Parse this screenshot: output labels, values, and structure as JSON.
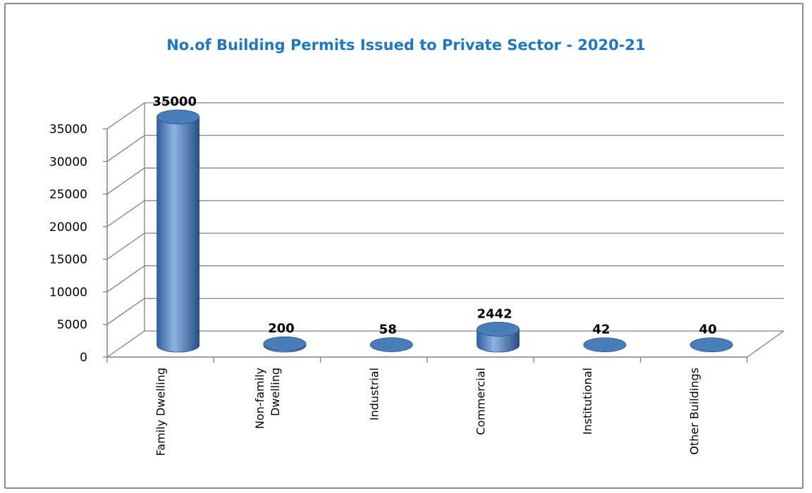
{
  "chart_data": {
    "type": "bar",
    "style": "3d-cylinder",
    "title": "No.of Building Permits Issued to Private Sector - 2020-21",
    "categories": [
      "Family Dwelling",
      "Non-family Dwelling",
      "Industrial",
      "Commercial",
      "Institutional",
      "Other Buildings"
    ],
    "category_lines": [
      [
        "Family Dwelling"
      ],
      [
        "Non-family",
        "Dwelling"
      ],
      [
        "Industrial"
      ],
      [
        "Commercial"
      ],
      [
        "Institutional"
      ],
      [
        "Other Buildings"
      ]
    ],
    "values": [
      35000,
      200,
      58,
      2442,
      42,
      40
    ],
    "data_labels": [
      "35000",
      "200",
      "58",
      "2442",
      "42",
      "40"
    ],
    "ylim": [
      0,
      35000
    ],
    "yticks": [
      0,
      5000,
      10000,
      15000,
      20000,
      25000,
      30000,
      35000
    ],
    "ytick_labels": [
      "0",
      "5000",
      "10000",
      "15000",
      "20000",
      "25000",
      "30000",
      "35000"
    ],
    "grid": true,
    "legend": "none",
    "colors": {
      "bar": "#4a7ebb",
      "bar_dark": "#274f86",
      "bar_light": "#8fb3e0",
      "title": "#1f77c4",
      "grid": "#808080"
    }
  }
}
